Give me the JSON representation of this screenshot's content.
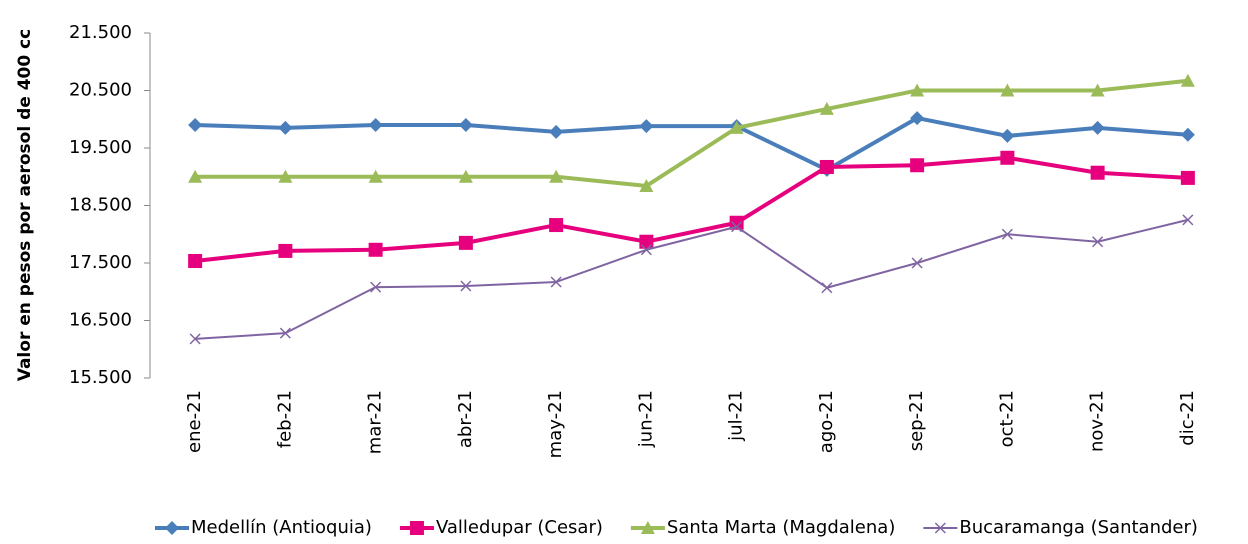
{
  "chart_data": {
    "type": "line",
    "y_label": "Valor en pesos por aerosol de 400 cc",
    "categories": [
      "ene-21",
      "feb-21",
      "mar-21",
      "abr-21",
      "may-21",
      "jun-21",
      "jul-21",
      "ago-21",
      "sep-21",
      "oct-21",
      "nov-21",
      "dic-21"
    ],
    "series": [
      {
        "name": "Medellín (Antioquia)",
        "color": "#4a7ebb",
        "marker": "diamond",
        "values": [
          19900,
          19850,
          19900,
          19900,
          19780,
          19880,
          19880,
          19120,
          20020,
          19710,
          19850,
          19730
        ]
      },
      {
        "name": "Valledupar (Cesar)",
        "color": "#e6007e",
        "marker": "square",
        "values": [
          17535,
          17710,
          17730,
          17850,
          18160,
          17870,
          18200,
          19170,
          19200,
          19330,
          19070,
          18980
        ]
      },
      {
        "name": "Santa Marta (Magdalena)",
        "color": "#9bbb59",
        "marker": "triangle",
        "values": [
          19000,
          19000,
          19000,
          19000,
          19000,
          18840,
          19850,
          20180,
          20500,
          20500,
          20500,
          20670
        ]
      },
      {
        "name": "Bucaramanga (Santander)",
        "color": "#8064a2",
        "marker": "x",
        "values": [
          16180,
          16280,
          17080,
          17100,
          17170,
          17730,
          18130,
          17070,
          17500,
          18000,
          17870,
          18250
        ]
      }
    ],
    "ylim": [
      15500,
      21500
    ],
    "yticks": [
      {
        "value": 15500,
        "label": "15.500"
      },
      {
        "value": 16500,
        "label": "16.500"
      },
      {
        "value": 17500,
        "label": "17.500"
      },
      {
        "value": 18500,
        "label": "18.500"
      },
      {
        "value": 19500,
        "label": "19.500"
      },
      {
        "value": 20500,
        "label": "20.500"
      },
      {
        "value": 21500,
        "label": "21.500"
      }
    ],
    "legend": "bottom"
  }
}
